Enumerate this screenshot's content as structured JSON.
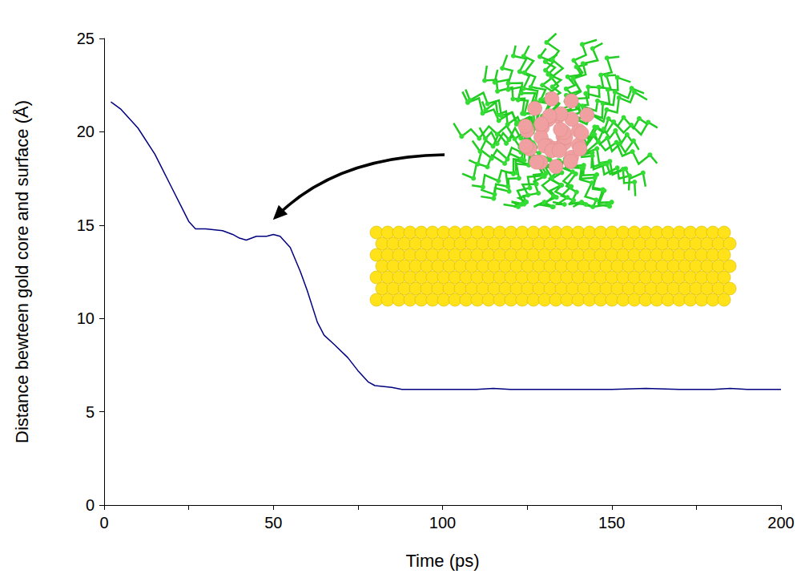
{
  "chart_data": {
    "type": "line",
    "xlabel": "Time (ps)",
    "ylabel": "Distance bewteen gold core and surface (Å)",
    "x": [
      2,
      5,
      10,
      15,
      20,
      25,
      27,
      30,
      35,
      38,
      40,
      42,
      45,
      48,
      50,
      52,
      55,
      58,
      60,
      63,
      65,
      68,
      72,
      75,
      78,
      80,
      85,
      88,
      90,
      100,
      110,
      115,
      120,
      130,
      140,
      150,
      160,
      170,
      180,
      185,
      190,
      200
    ],
    "values": [
      21.6,
      21.2,
      20.2,
      18.8,
      17.0,
      15.2,
      14.8,
      14.8,
      14.7,
      14.5,
      14.3,
      14.2,
      14.4,
      14.4,
      14.5,
      14.4,
      13.8,
      12.5,
      11.5,
      9.8,
      9.1,
      8.6,
      7.9,
      7.2,
      6.6,
      6.4,
      6.3,
      6.2,
      6.2,
      6.2,
      6.2,
      6.25,
      6.2,
      6.2,
      6.2,
      6.2,
      6.25,
      6.2,
      6.2,
      6.25,
      6.2,
      6.2
    ],
    "color": "#000080",
    "xlim": [
      0,
      200
    ],
    "xticks": [
      0,
      50,
      100,
      150,
      200
    ],
    "ylim": [
      0,
      25
    ],
    "yticks": [
      0,
      5,
      10,
      15,
      20,
      25
    ],
    "grid": false
  }
}
